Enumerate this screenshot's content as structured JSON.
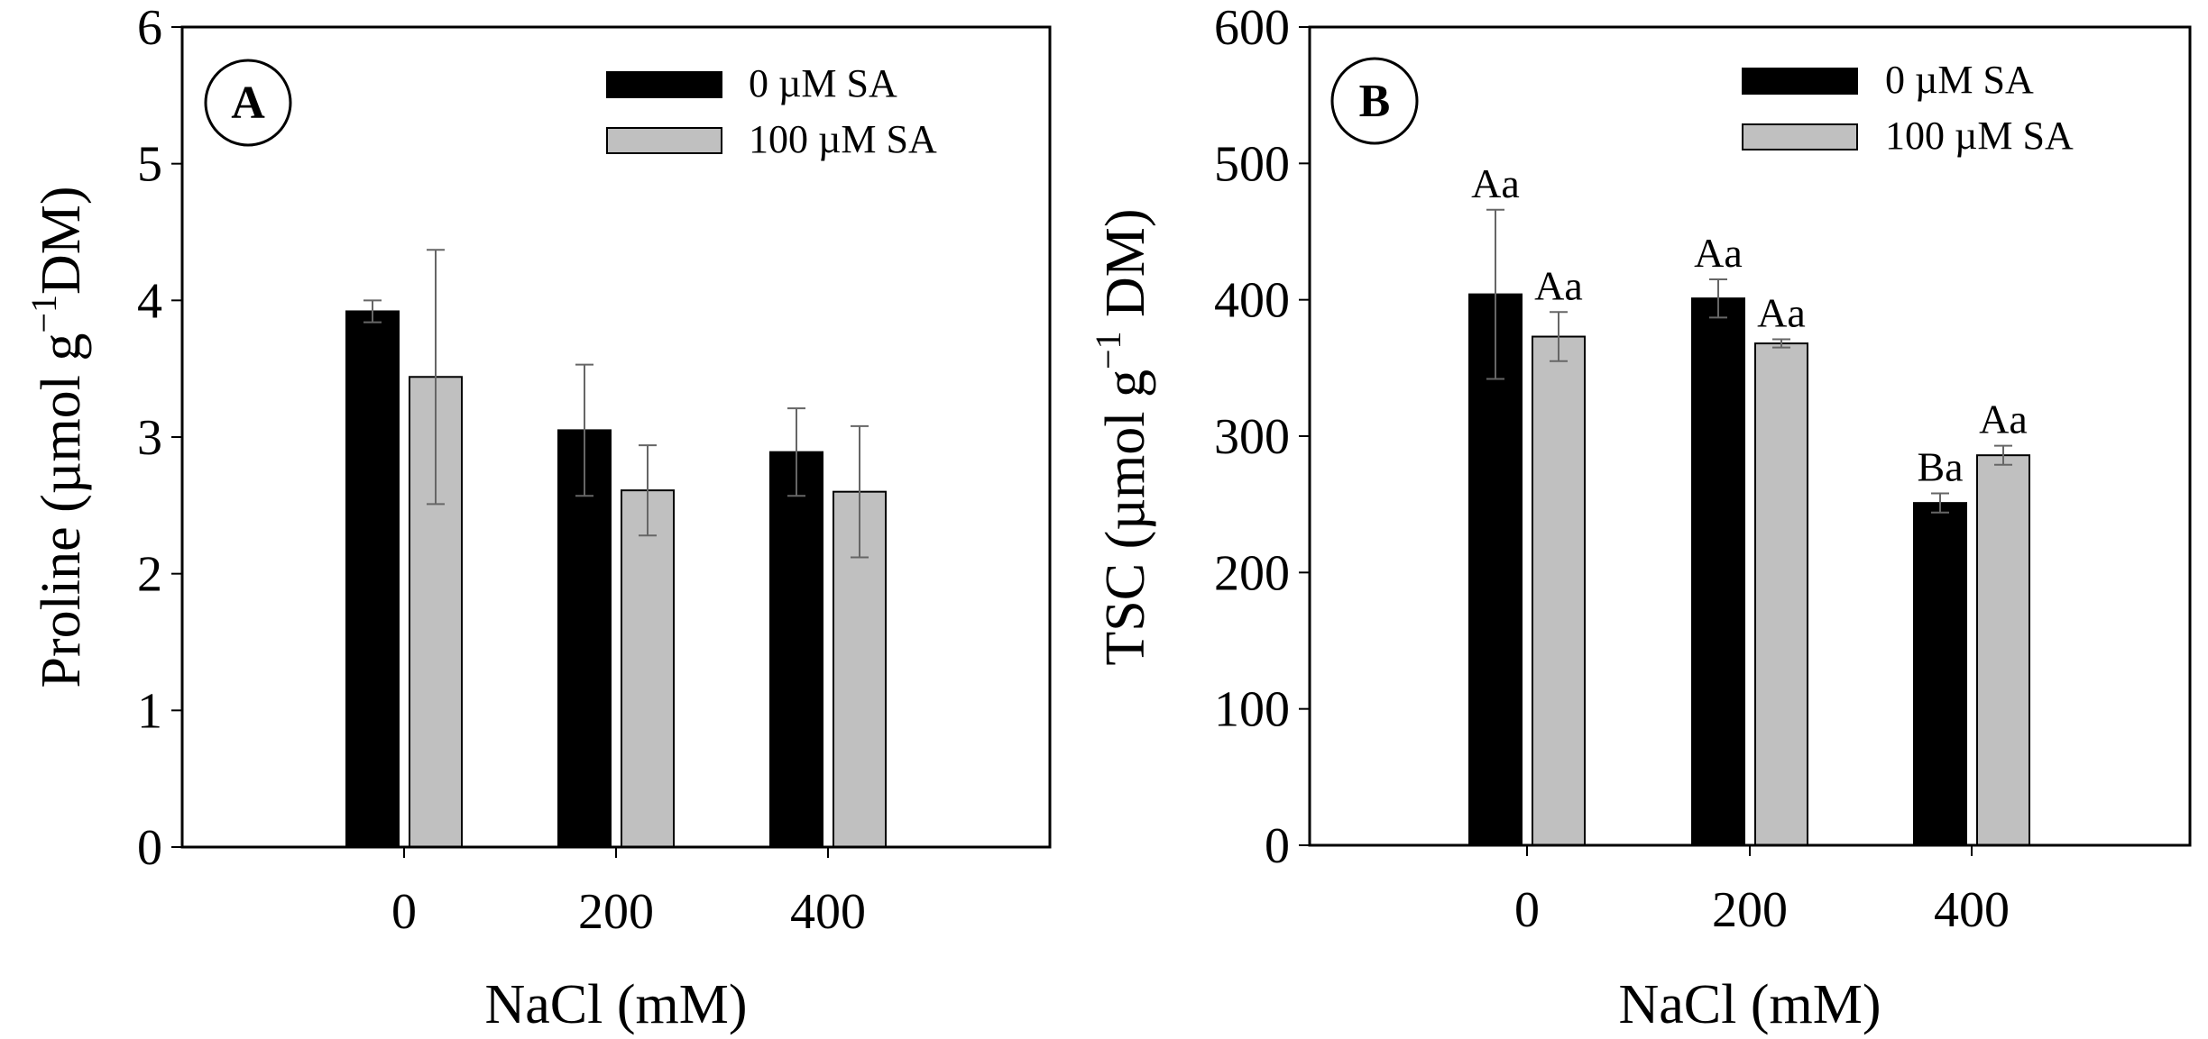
{
  "chart_data": [
    {
      "type": "bar",
      "panel_label": "A",
      "title": "",
      "xlabel": "NaCl (mM)",
      "ylabel_main": "Proline (µmol g",
      "ylabel_sup": "−1",
      "ylabel_end": "DM)",
      "categories": [
        "0",
        "200",
        "400"
      ],
      "ylim": [
        0,
        6
      ],
      "yticks": [
        "0",
        "1",
        "2",
        "3",
        "4",
        "5",
        "6"
      ],
      "legend_position": "top-right",
      "series": [
        {
          "name": "0 µM SA",
          "color": "#000000",
          "values": [
            3.92,
            3.05,
            2.89
          ],
          "errors": [
            0.08,
            0.48,
            0.32
          ],
          "labels": []
        },
        {
          "name": "100 µM SA",
          "color": "#c0c0c0",
          "values": [
            3.44,
            2.61,
            2.6
          ],
          "errors": [
            0.93,
            0.33,
            0.48
          ],
          "labels": []
        }
      ]
    },
    {
      "type": "bar",
      "panel_label": "B",
      "title": "",
      "xlabel": "NaCl (mM)",
      "ylabel_main": "TSC (µmol g",
      "ylabel_sup": "−1",
      "ylabel_end": " DM)",
      "categories": [
        "0",
        "200",
        "400"
      ],
      "ylim": [
        0,
        600
      ],
      "yticks": [
        "0",
        "100",
        "200",
        "300",
        "400",
        "500",
        "600"
      ],
      "legend_position": "top-right",
      "series": [
        {
          "name": "0 µM  SA",
          "color": "#000000",
          "values": [
            404,
            401,
            251
          ],
          "errors": [
            62,
            14,
            7
          ],
          "labels": [
            "Aa",
            "Aa",
            "Ba"
          ]
        },
        {
          "name": "100 µM SA",
          "color": "#c0c0c0",
          "values": [
            373,
            368,
            286
          ],
          "errors": [
            18,
            3,
            7
          ],
          "labels": [
            "Aa",
            "Aa",
            "Aa"
          ]
        }
      ]
    }
  ]
}
